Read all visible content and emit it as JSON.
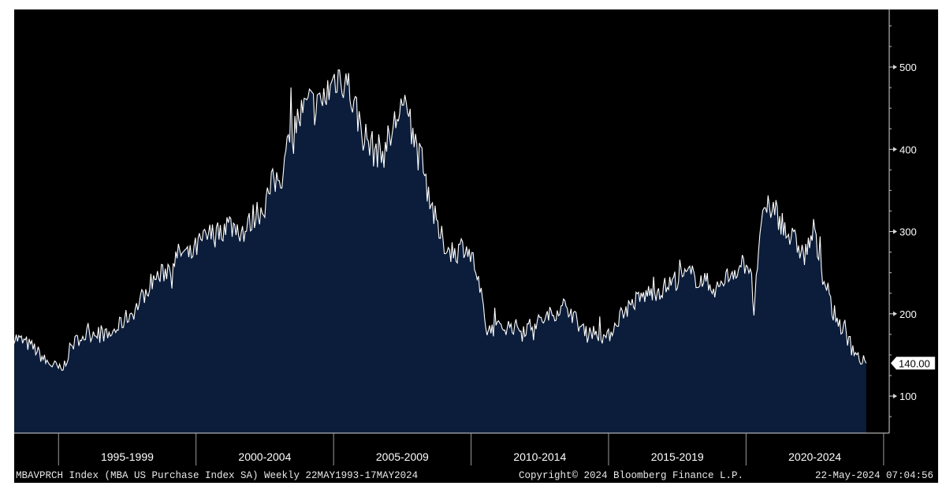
{
  "chart_data": {
    "type": "area",
    "title": "",
    "xlabel": "",
    "ylabel": "",
    "x_range": [
      "1993-05-22",
      "2024-05-17"
    ],
    "ylim": [
      55,
      570
    ],
    "yticks": [
      100,
      200,
      300,
      400,
      500
    ],
    "x_period_labels": [
      "1995-1999",
      "2000-2004",
      "2005-2009",
      "2010-2014",
      "2015-2019",
      "2020-2024"
    ],
    "last_value_label": "140.00",
    "grid": false,
    "colors": {
      "background": "#000000",
      "fill": "#0b1d3a",
      "line": "#ffffff"
    },
    "series": [
      {
        "x": [
          "1993-05",
          "1993-10",
          "1994-02",
          "1994-07",
          "1994-12",
          "1995-02",
          "1995-06",
          "1995-10",
          "1996-02",
          "1996-06",
          "1996-10",
          "1997-02",
          "1997-06",
          "1997-10",
          "1998-02",
          "1998-06",
          "1998-10",
          "1999-02",
          "1999-06",
          "1999-10",
          "2000-02",
          "2000-06",
          "2000-10",
          "2001-02",
          "2001-06",
          "2001-10",
          "2002-02",
          "2002-06",
          "2002-10",
          "2003-02",
          "2003-06",
          "2003-10",
          "2004-02",
          "2004-06",
          "2004-10",
          "2005-02",
          "2005-06",
          "2005-10",
          "2006-02",
          "2006-06",
          "2006-10",
          "2007-02",
          "2007-06",
          "2007-10",
          "2008-02",
          "2008-06",
          "2008-10",
          "2009-02",
          "2009-06",
          "2009-10",
          "2010-02",
          "2010-05",
          "2010-07",
          "2010-12",
          "2011-06",
          "2011-12",
          "2012-06",
          "2012-12",
          "2013-06",
          "2013-12",
          "2014-06",
          "2014-12",
          "2015-06",
          "2015-12",
          "2016-06",
          "2016-12",
          "2017-06",
          "2017-12",
          "2018-06",
          "2018-12",
          "2019-06",
          "2019-12",
          "2020-03",
          "2020-04",
          "2020-06",
          "2020-09",
          "2021-01",
          "2021-06",
          "2021-12",
          "2022-02",
          "2022-06",
          "2022-10",
          "2023-02",
          "2023-06",
          "2023-10",
          "2024-02",
          "2024-05"
        ],
        "values": [
          172,
          165,
          158,
          142,
          135,
          130,
          160,
          172,
          175,
          180,
          172,
          182,
          195,
          205,
          225,
          242,
          248,
          262,
          275,
          270,
          285,
          295,
          298,
          310,
          305,
          300,
          320,
          330,
          358,
          370,
          420,
          440,
          455,
          450,
          470,
          490,
          485,
          450,
          415,
          400,
          395,
          420,
          455,
          430,
          390,
          350,
          300,
          280,
          275,
          285,
          260,
          220,
          180,
          183,
          185,
          182,
          190,
          200,
          212,
          185,
          178,
          170,
          200,
          215,
          225,
          230,
          242,
          248,
          240,
          230,
          250,
          262,
          255,
          190,
          285,
          325,
          330,
          300,
          280,
          270,
          300,
          248,
          205,
          185,
          165,
          145,
          140
        ]
      }
    ]
  }
}
